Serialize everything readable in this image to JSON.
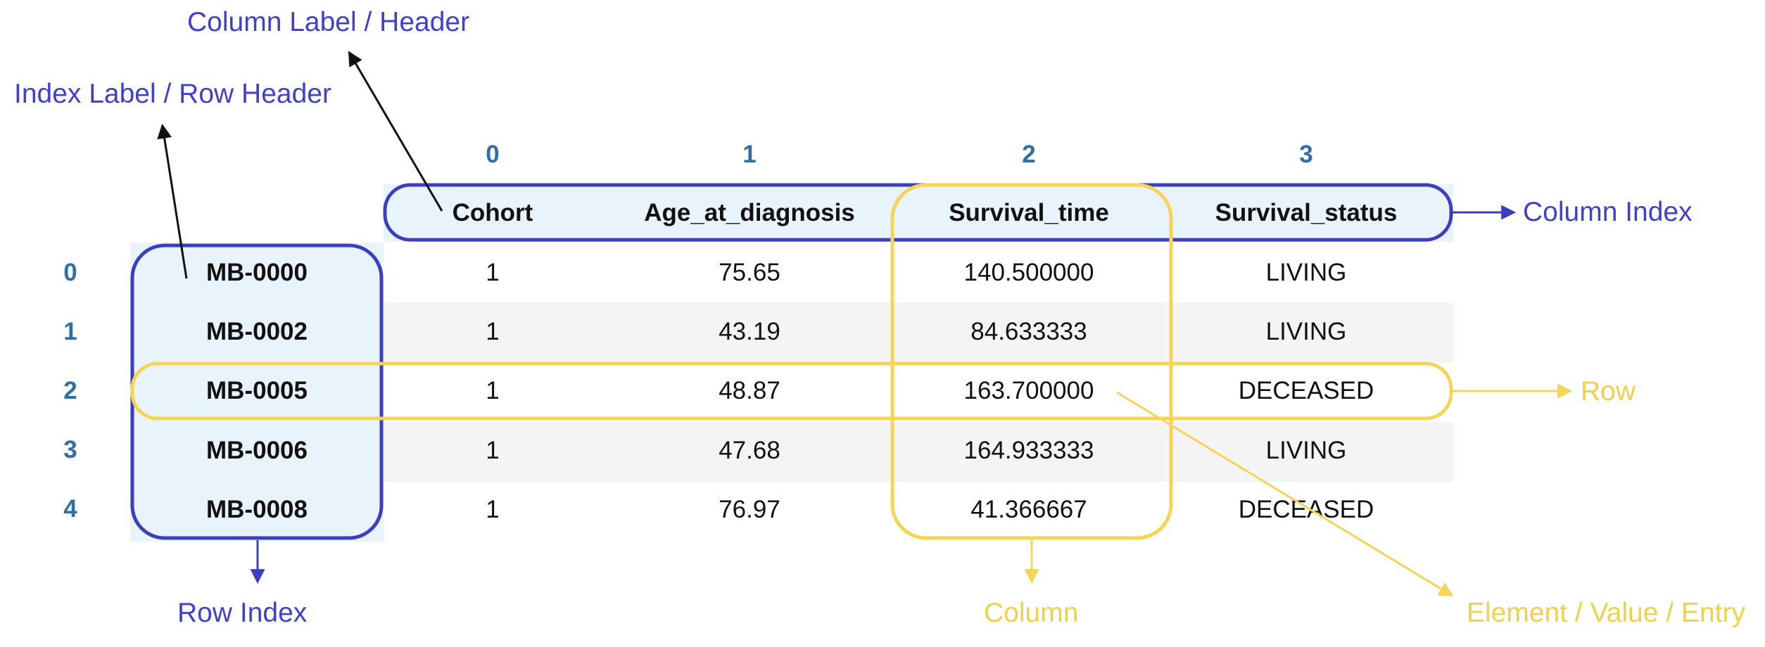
{
  "colors": {
    "blue_accent": "#3b3fbf",
    "yellow_accent": "#f6d455",
    "index_text": "#2e6fa8",
    "header_fill": "#e8f3fc",
    "stripe_fill": "#f4f4f4"
  },
  "annotations": {
    "column_label": "Column Label / Header",
    "index_label": "Index Label / Row Header",
    "column_index": "Column Index",
    "row": "Row",
    "row_index": "Row Index",
    "column": "Column",
    "element": "Element / Value / Entry"
  },
  "column_positions": [
    "0",
    "1",
    "2",
    "3"
  ],
  "row_positions": [
    "0",
    "1",
    "2",
    "3",
    "4"
  ],
  "table": {
    "columns": [
      "Cohort",
      "Age_at_diagnosis",
      "Survival_time",
      "Survival_status"
    ],
    "rows": [
      {
        "index": "MB-0000",
        "cells": [
          "1",
          "75.65",
          "140.500000",
          "LIVING"
        ]
      },
      {
        "index": "MB-0002",
        "cells": [
          "1",
          "43.19",
          "84.633333",
          "LIVING"
        ]
      },
      {
        "index": "MB-0005",
        "cells": [
          "1",
          "48.87",
          "163.700000",
          "DECEASED"
        ]
      },
      {
        "index": "MB-0006",
        "cells": [
          "1",
          "47.68",
          "164.933333",
          "LIVING"
        ]
      },
      {
        "index": "MB-0008",
        "cells": [
          "1",
          "76.97",
          "41.366667",
          "DECEASED"
        ]
      }
    ]
  }
}
